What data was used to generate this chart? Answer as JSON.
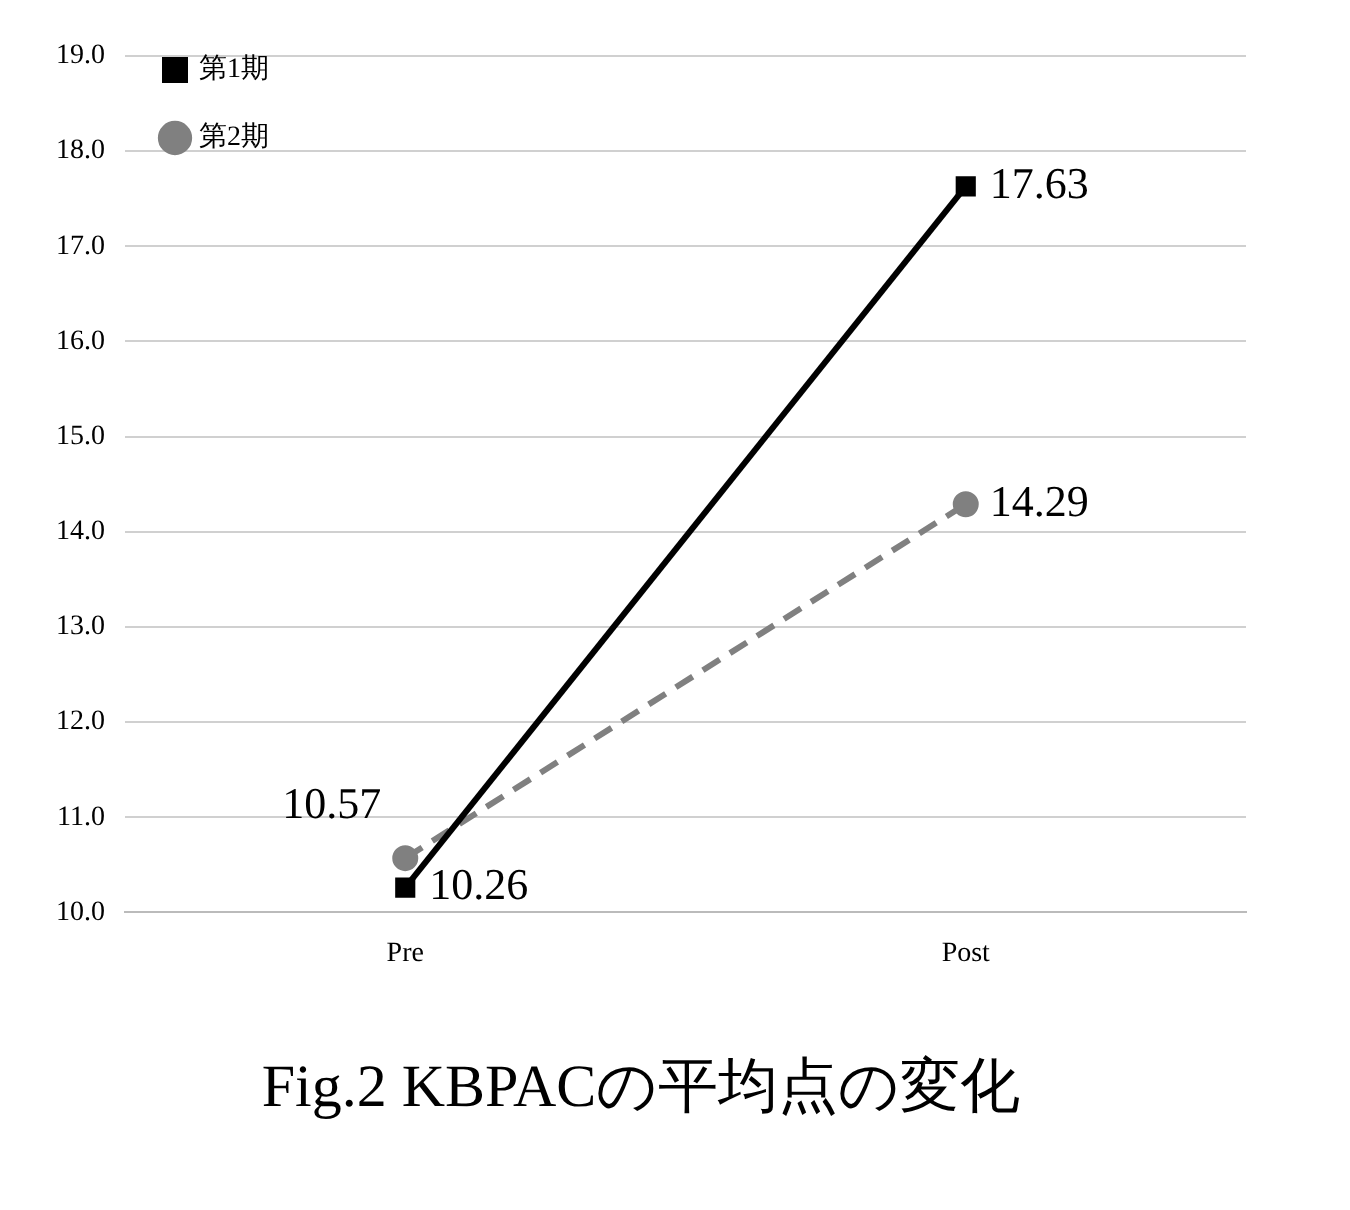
{
  "chart_data": {
    "type": "line",
    "title": "Fig.2 KBPACの平均点の変化",
    "categories": [
      "Pre",
      "Post"
    ],
    "series": [
      {
        "name": "第1期",
        "color": "#000000",
        "values": [
          10.26,
          17.63
        ],
        "marker": "square",
        "line_style": "solid"
      },
      {
        "name": "第2期",
        "color": "#808080",
        "values": [
          10.57,
          14.29
        ],
        "marker": "circle",
        "line_style": "dashed"
      }
    ],
    "ylim": [
      10,
      19
    ],
    "yticks": [
      {
        "value": 10,
        "label": "10.0"
      },
      {
        "value": 11,
        "label": "11.0"
      },
      {
        "value": 12,
        "label": "12.0"
      },
      {
        "value": 13,
        "label": "13.0"
      },
      {
        "value": 14,
        "label": "14.0"
      },
      {
        "value": 15,
        "label": "15.0"
      },
      {
        "value": 16,
        "label": "16.0"
      },
      {
        "value": 17,
        "label": "17.0"
      },
      {
        "value": 18,
        "label": "18.0"
      },
      {
        "value": 19,
        "label": "19.0"
      }
    ],
    "grid": "y",
    "legend": "top left",
    "data_labels": true
  }
}
